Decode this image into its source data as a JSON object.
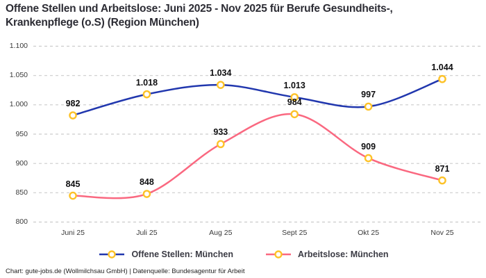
{
  "title": "Offene Stellen und Arbeitslose: Juni 2025 - Nov 2025 für Berufe Gesundheits-, Krankenpflege (o.S) (Region München)",
  "footer": "Chart: gute-jobs.de (Wollmilchsau GmbH) | Datenquelle: Bundesagentur für Arbeit",
  "colors": {
    "grid": "#cccccc",
    "marker_stroke": "#fdc228",
    "marker_fill": "#ffffff",
    "tick_text": "#3a3a3a",
    "data_label": "#0e0e10"
  },
  "chart_data": {
    "type": "line",
    "title": "Offene Stellen und Arbeitslose: Juni 2025 - Nov 2025 für Berufe Gesundheits-, Krankenpflege (o.S) (Region München)",
    "xlabel": "",
    "ylabel": "",
    "categories": [
      "Juni 25",
      "Juli 25",
      "Aug 25",
      "Sept 25",
      "Okt 25",
      "Nov 25"
    ],
    "series": [
      {
        "name": "Offene Stellen: München",
        "color": "#2137ae",
        "values": [
          982,
          1018,
          1034,
          1013,
          997,
          1044
        ],
        "labels": [
          "982",
          "1.018",
          "1.034",
          "1.013",
          "997",
          "1.044"
        ]
      },
      {
        "name": "Arbeitslose: München",
        "color": "#fa6880",
        "values": [
          845,
          848,
          933,
          984,
          909,
          871
        ],
        "labels": [
          "845",
          "848",
          "933",
          "984",
          "909",
          "871"
        ]
      }
    ],
    "ylim": [
      800,
      1100
    ],
    "yticks": {
      "values": [
        800,
        850,
        900,
        950,
        1000,
        1050,
        1100
      ],
      "labels": [
        "800",
        "850",
        "900",
        "950",
        "1.000",
        "1.050",
        "1.100"
      ]
    },
    "grid": "horizontal-dashed",
    "legend_position": "bottom",
    "line_style": "smooth",
    "marker": "open-circle"
  }
}
